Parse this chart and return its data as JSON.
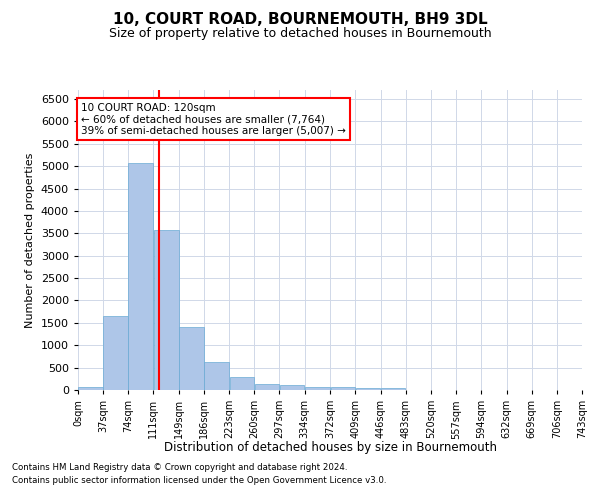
{
  "title": "10, COURT ROAD, BOURNEMOUTH, BH9 3DL",
  "subtitle": "Size of property relative to detached houses in Bournemouth",
  "xlabel": "Distribution of detached houses by size in Bournemouth",
  "ylabel": "Number of detached properties",
  "footnote1": "Contains HM Land Registry data © Crown copyright and database right 2024.",
  "footnote2": "Contains public sector information licensed under the Open Government Licence v3.0.",
  "annotation_title": "10 COURT ROAD: 120sqm",
  "annotation_line1": "← 60% of detached houses are smaller (7,764)",
  "annotation_line2": "39% of semi-detached houses are larger (5,007) →",
  "property_size_sqm": 120,
  "bar_color": "#aec6e8",
  "bar_edge_color": "#6aaad4",
  "vline_color": "red",
  "annotation_box_edge_color": "red",
  "annotation_box_face_color": "white",
  "grid_color": "#d0d8e8",
  "background_color": "white",
  "ylim": [
    0,
    6700
  ],
  "yticks": [
    0,
    500,
    1000,
    1500,
    2000,
    2500,
    3000,
    3500,
    4000,
    4500,
    5000,
    5500,
    6000,
    6500
  ],
  "bin_edges": [
    0,
    37,
    74,
    111,
    149,
    186,
    223,
    260,
    297,
    334,
    372,
    409,
    446,
    483,
    520,
    557,
    594,
    632,
    669,
    706,
    743
  ],
  "bar_heights": [
    75,
    1650,
    5060,
    3580,
    1400,
    620,
    290,
    140,
    110,
    75,
    60,
    50,
    40,
    0,
    0,
    0,
    0,
    0,
    0,
    0
  ],
  "tick_labels": [
    "0sqm",
    "37sqm",
    "74sqm",
    "111sqm",
    "149sqm",
    "186sqm",
    "223sqm",
    "260sqm",
    "297sqm",
    "334sqm",
    "372sqm",
    "409sqm",
    "446sqm",
    "483sqm",
    "520sqm",
    "557sqm",
    "594sqm",
    "632sqm",
    "669sqm",
    "706sqm",
    "743sqm"
  ]
}
